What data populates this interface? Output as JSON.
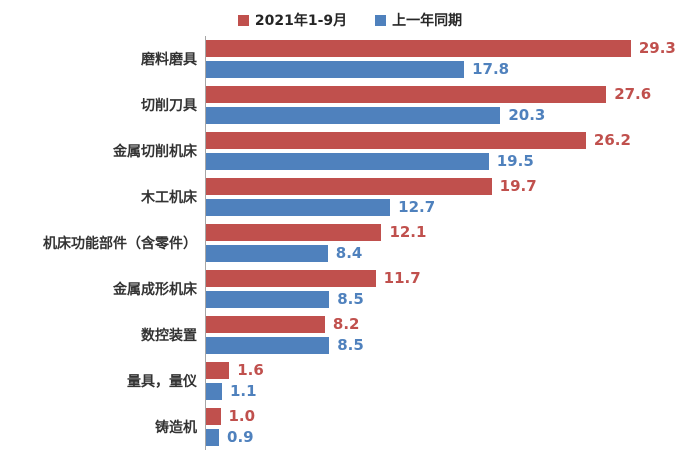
{
  "colors": {
    "series1": "#c0504d",
    "series2": "#4f81bd",
    "axis_line": "#a6a6a6",
    "value_label_series1": "#c0504d",
    "value_label_series2": "#4f81bd"
  },
  "chart_data": {
    "type": "bar",
    "orientation": "horizontal",
    "title": "",
    "xlabel": "",
    "ylabel": "",
    "xlim": [
      0,
      33
    ],
    "grid": false,
    "legend_position": "top-center",
    "value_labels": true,
    "categories": [
      "磨料磨具",
      "切削刀具",
      "金属切削机床",
      "木工机床",
      "机床功能部件（含零件）",
      "金属成形机床",
      "数控装置",
      "量具，量仪",
      "铸造机"
    ],
    "series": [
      {
        "name": "2021年1-9月",
        "color": "#c0504d",
        "values": [
          29.3,
          27.6,
          26.2,
          19.7,
          12.1,
          11.7,
          8.2,
          1.6,
          1.0
        ]
      },
      {
        "name": "上一年同期",
        "color": "#4f81bd",
        "values": [
          17.8,
          20.3,
          19.5,
          12.7,
          8.4,
          8.5,
          8.5,
          1.1,
          0.9
        ]
      }
    ]
  }
}
